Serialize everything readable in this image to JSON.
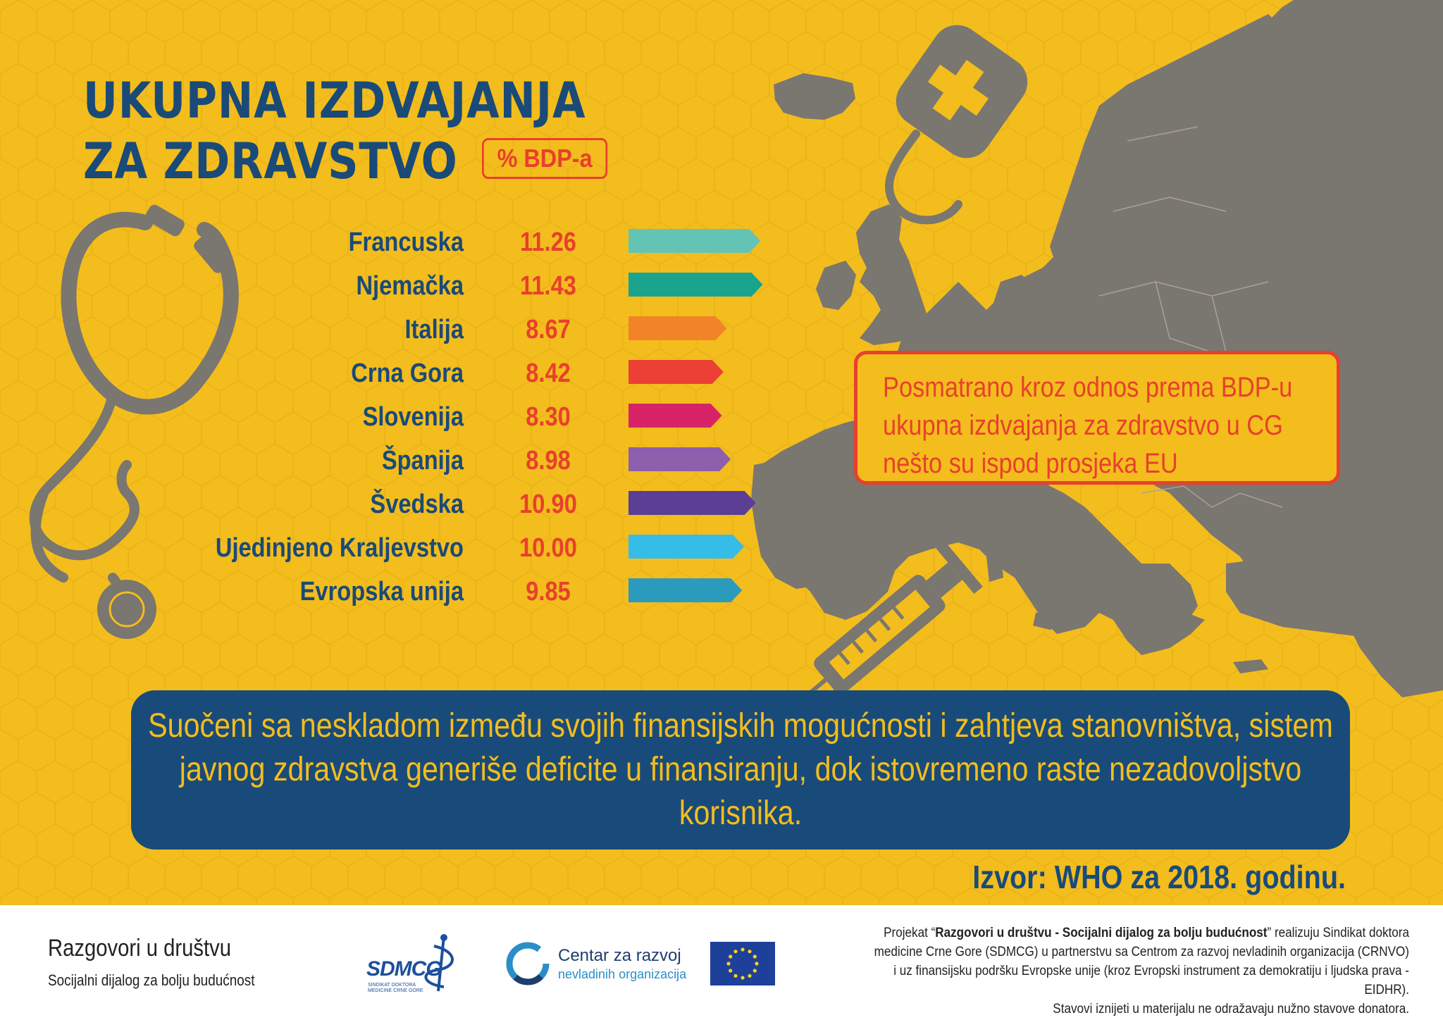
{
  "title": {
    "line1": "UKUPNA IZDVAJANJA",
    "line2": "ZA ZDRAVSTVO"
  },
  "unit_badge": "% BDP-a",
  "note": "Posmatrano kroz odnos prema BDP-u ukupna izdvajanja za zdravstvo u CG nešto su ispod prosjeka EU",
  "message": "Suočeni sa neskladom između svojih finansijskih mogućnosti i zahtjeva stanovništva, sistem javnog zdravstva generiše deficite u finansiranju, dok istovremeno raste nezadovoljstvo korisnika.",
  "source": "Izvor: WHO za 2018. godinu.",
  "colors": {
    "background": "#f3bd1d",
    "title": "#1a4a78",
    "accent_red": "#e8402c",
    "map_gray": "#7a7670",
    "panel_blue": "#194b7a"
  },
  "icons": [
    "stethoscope-icon",
    "iv-bag-icon",
    "syringe-icon",
    "europe-map"
  ],
  "chart_data": {
    "type": "bar",
    "orientation": "horizontal",
    "categories": [
      "Francuska",
      "Njemačka",
      "Italija",
      "Crna Gora",
      "Slovenija",
      "Španija",
      "Švedska",
      "Ujedinjeno Kraljevstvo",
      "Evropska unija"
    ],
    "values": [
      11.26,
      11.43,
      8.67,
      8.42,
      8.3,
      8.98,
      10.9,
      10.0,
      9.85
    ],
    "value_labels": [
      "11.26",
      "11.43",
      "8.67",
      "8.42",
      "8.30",
      "8.98",
      "10.90",
      "10.00",
      "9.85"
    ],
    "colors": [
      "#63c4b6",
      "#1aa38f",
      "#f28427",
      "#ec4036",
      "#d82466",
      "#8d5fad",
      "#5b3e96",
      "#35bde8",
      "#2b9bbd"
    ],
    "title": "UKUPNA IZDVAJANJA ZA ZDRAVSTVO",
    "unit": "% BDP-a",
    "xlabel": "",
    "ylabel": ""
  },
  "footer": {
    "project_name": "Razgovori u društvu",
    "project_sub": "Socijalni dijalog za bolju budućnost",
    "sdmcg": {
      "name": "SDMCG",
      "sub": "SINDIKAT DOKTORA MEDICINE CRNE GORE"
    },
    "crnvo": {
      "line1": "Centar za razvoj",
      "line2": "nevladinih organizacija"
    },
    "disclaimer": {
      "line1_pre": "Projekat “",
      "line1_bold": "Razgovori u društvu - Socijalni dijalog za bolju budućnost",
      "line1_post": "” realizuju Sindikat doktora",
      "line2": "medicine Crne Gore (SDMCG) u partnerstvu sa Centrom za razvoj nevladinih organizacija (CRNVO)",
      "line3": "i uz finansijsku podršku Evropske unije (kroz Evropski instrument za demokratiju i ljudska prava - EIDHR).",
      "line4": "Stavovi iznijeti u materijalu ne odražavaju nužno stavove donatora."
    }
  }
}
